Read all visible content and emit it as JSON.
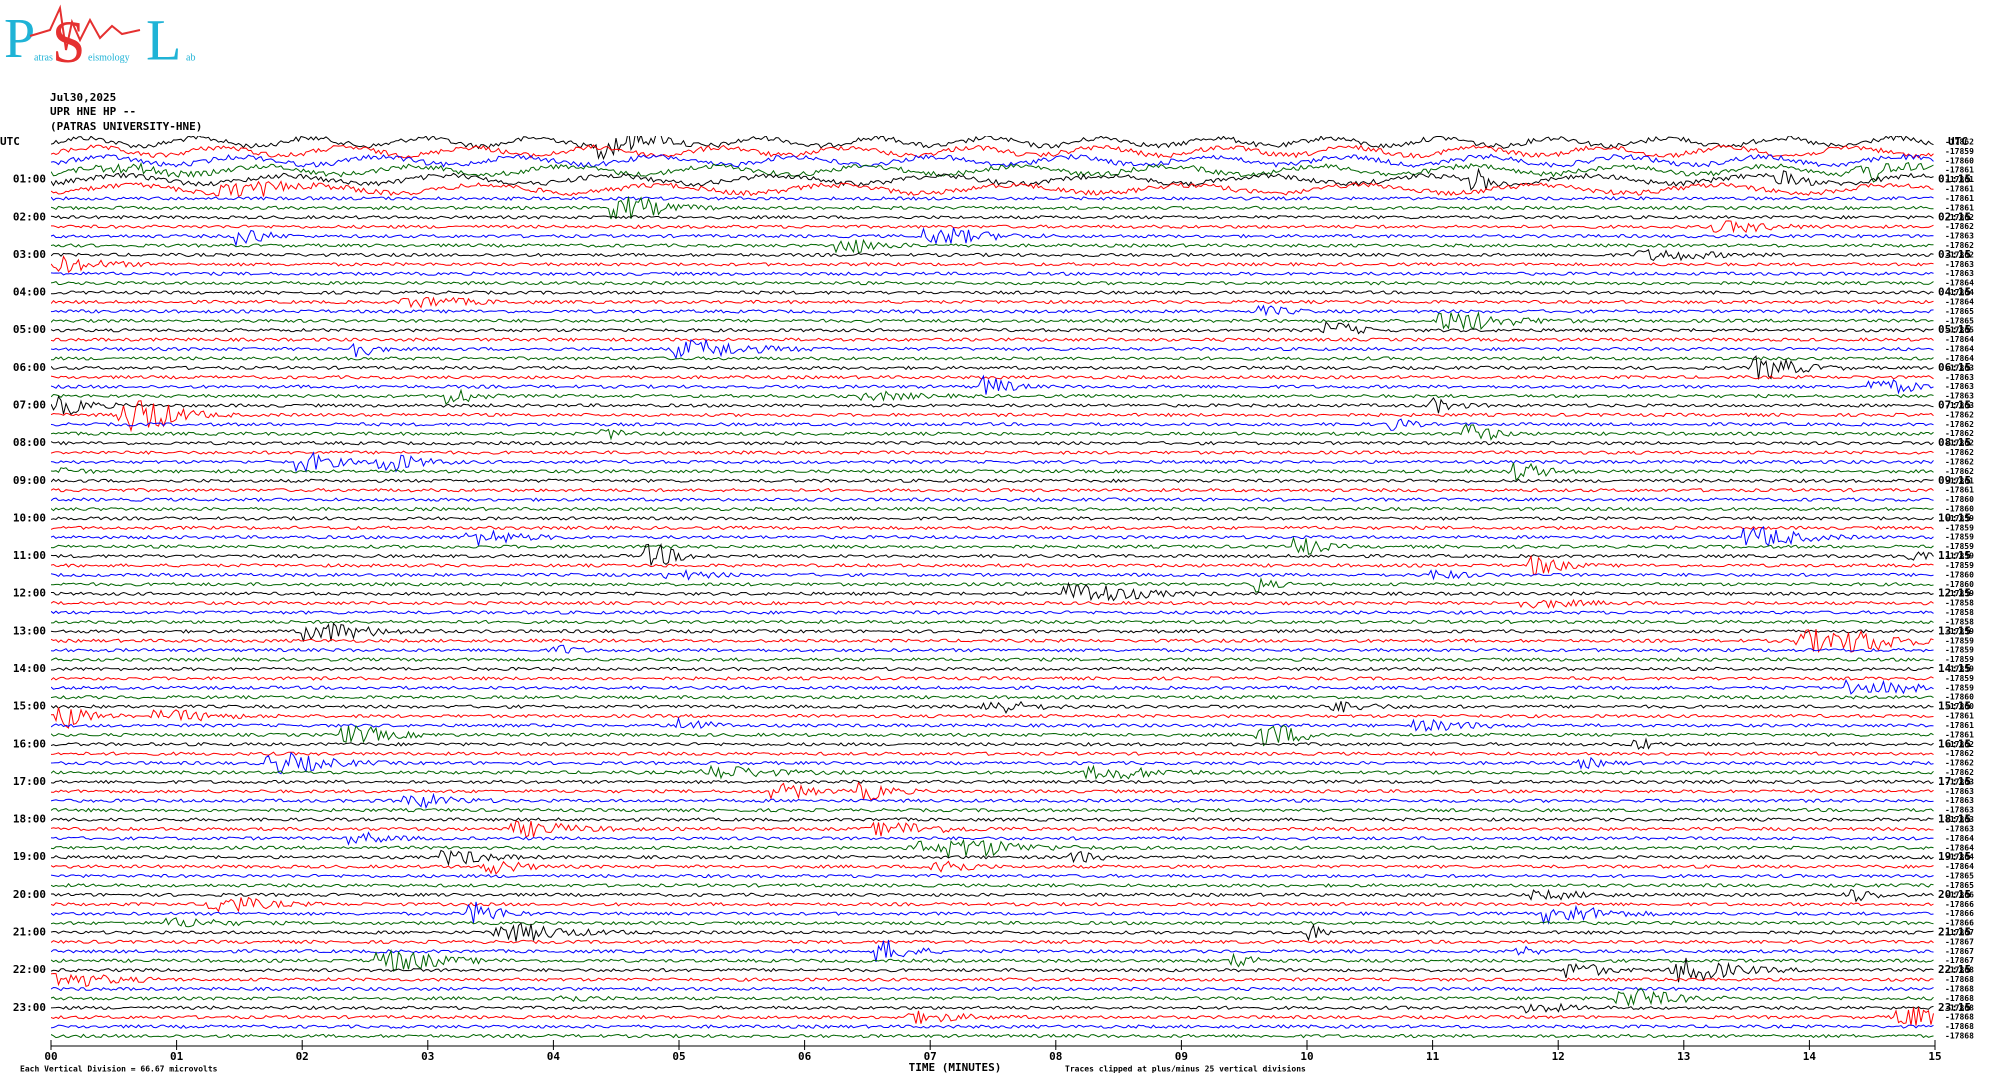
{
  "chart_data": {
    "type": "helicorder",
    "logo": {
      "letters": [
        "P",
        "S",
        "L"
      ],
      "words": [
        "atras",
        "eismology",
        "ab"
      ]
    },
    "header": [
      "Jul30,2025",
      "UPR HNE HP --",
      "(PATRAS UNIVERSITY-HNE)"
    ],
    "utc_left": "UTC",
    "utc_right": "UTC",
    "row_labels_left": [
      "01:00",
      "02:00",
      "03:00",
      "04:00",
      "05:00",
      "06:00",
      "07:00",
      "08:00",
      "09:00",
      "10:00",
      "11:00",
      "12:00",
      "13:00",
      "14:00",
      "15:00",
      "16:00",
      "17:00",
      "18:00",
      "19:00",
      "20:00",
      "21:00",
      "22:00",
      "23:00"
    ],
    "row_labels_right": [
      "01:15",
      "02:15",
      "03:15",
      "04:15",
      "05:15",
      "06:15",
      "07:15",
      "08:15",
      "09:15",
      "10:15",
      "11:15",
      "12:15",
      "13:15",
      "14:15",
      "15:15",
      "16:15",
      "17:15",
      "18:15",
      "19:15",
      "20:15",
      "21:15",
      "22:15",
      "23:15"
    ],
    "trace_offsets": [
      -17862,
      -17859,
      -17860,
      -17861,
      -17861,
      -17861,
      -17861,
      -17861,
      -17862,
      -17862,
      -17863,
      -17862,
      -17862,
      -17863,
      -17863,
      -17864,
      -17864,
      -17864,
      -17865,
      -17865,
      -17865,
      -17864,
      -17864,
      -17864,
      -17863,
      -17863,
      -17863,
      -17863,
      -17863,
      -17862,
      -17862,
      -17862,
      -17862,
      -17862,
      -17862,
      -17862,
      -17861,
      -17861,
      -17860,
      -17860,
      -17859,
      -17859,
      -17859,
      -17859,
      -17859,
      -17859,
      -17860,
      -17860,
      -17859,
      -17858,
      -17858,
      -17858,
      -17859,
      -17859,
      -17859,
      -17859,
      -17859,
      -17859,
      -17859,
      -17860,
      -17860,
      -17861,
      -17861,
      -17861,
      -17862,
      -17862,
      -17862,
      -17862,
      -17863,
      -17863,
      -17863,
      -17863,
      -17863,
      -17863,
      -17864,
      -17864,
      -17864,
      -17864,
      -17865,
      -17865,
      -17866,
      -17866,
      -17866,
      -17866,
      -17867,
      -17867,
      -17867,
      -17867,
      -17868,
      -17868,
      -17868,
      -17868,
      -17868,
      -17868,
      -17868,
      -17868
    ],
    "trace_colors": [
      "#000000",
      "#ff0000",
      "#0000ff",
      "#006400"
    ],
    "xlim": [
      0,
      15
    ],
    "xticks": [
      {
        "value": 0,
        "label": "00"
      },
      {
        "value": 1,
        "label": "01"
      },
      {
        "value": 2,
        "label": "02"
      },
      {
        "value": 3,
        "label": "03"
      },
      {
        "value": 4,
        "label": "04"
      },
      {
        "value": 5,
        "label": "05"
      },
      {
        "value": 6,
        "label": "06"
      },
      {
        "value": 7,
        "label": "07"
      },
      {
        "value": 8,
        "label": "08"
      },
      {
        "value": 9,
        "label": "09"
      },
      {
        "value": 10,
        "label": "10"
      },
      {
        "value": 11,
        "label": "11"
      },
      {
        "value": 12,
        "label": "12"
      },
      {
        "value": 13,
        "label": "13"
      },
      {
        "value": 14,
        "label": "14"
      },
      15
    ],
    "xlabel": "TIME (MINUTES)",
    "footer_left": "Each Vertical Division =   66.67 microvolts",
    "footer_right": "Traces clipped at plus/minus 25 vertical divisions"
  }
}
